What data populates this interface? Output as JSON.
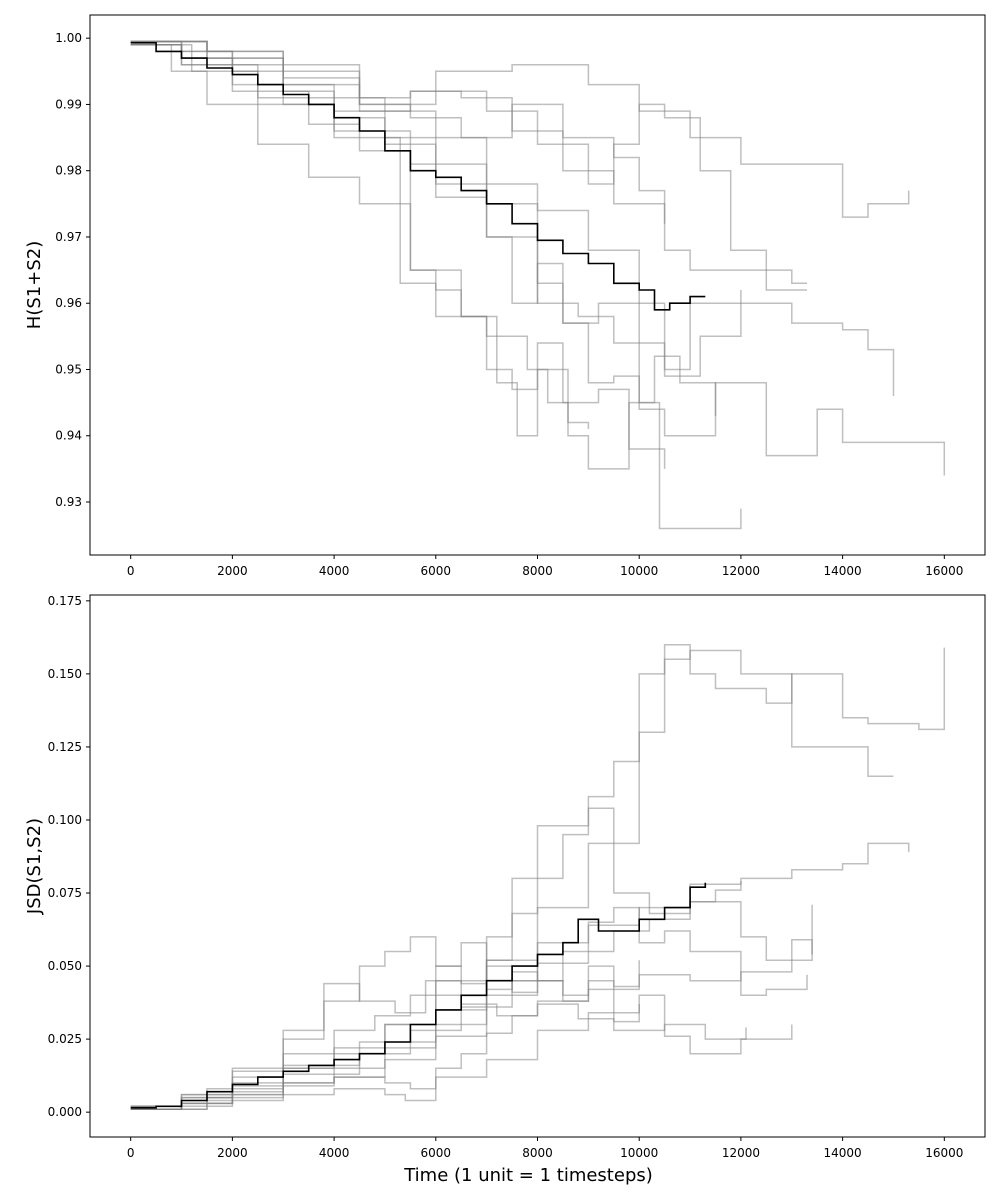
{
  "chart_data": [
    {
      "type": "line",
      "ylabel": "H(S1+S2)",
      "xlabel": "",
      "xlim": [
        -800,
        16800
      ],
      "ylim": [
        0.922,
        1.0035
      ],
      "xticks": [
        0,
        2000,
        4000,
        6000,
        8000,
        10000,
        12000,
        14000,
        16000
      ],
      "xtick_labels": [
        "0",
        "2000",
        "4000",
        "6000",
        "8000",
        "10000",
        "12000",
        "14000",
        "16000"
      ],
      "yticks": [
        0.93,
        0.94,
        0.95,
        0.96,
        0.97,
        0.98,
        0.99,
        1.0
      ],
      "ytick_labels": [
        "0.93",
        "0.94",
        "0.95",
        "0.96",
        "0.97",
        "0.98",
        "0.99",
        "1.00"
      ],
      "mean_color": "#000000",
      "run_color": "#808080",
      "series": [
        {
          "kind": "mean",
          "x": [
            0,
            500,
            1000,
            1500,
            2000,
            2500,
            3000,
            3500,
            4000,
            4500,
            5000,
            5500,
            6000,
            6500,
            7000,
            7500,
            8000,
            8500,
            9000,
            9500,
            10000,
            10300,
            10600,
            11000,
            11300
          ],
          "y": [
            0.9993,
            0.998,
            0.997,
            0.9955,
            0.9945,
            0.993,
            0.9915,
            0.99,
            0.988,
            0.986,
            0.983,
            0.98,
            0.979,
            0.977,
            0.975,
            0.972,
            0.9695,
            0.9675,
            0.966,
            0.963,
            0.962,
            0.959,
            0.96,
            0.961,
            0.961
          ]
        },
        {
          "kind": "run",
          "x": [
            0,
            1500,
            3000,
            4500,
            5500,
            6500,
            7500,
            8500,
            9500,
            10500,
            11000,
            11500,
            12000,
            13000,
            13300
          ],
          "y": [
            0.9995,
            0.997,
            0.993,
            0.989,
            0.992,
            0.991,
            0.986,
            0.98,
            0.975,
            0.968,
            0.965,
            0.965,
            0.965,
            0.963,
            0.963
          ]
        },
        {
          "kind": "run",
          "x": [
            0,
            1000,
            2500,
            4000,
            5500,
            7000,
            8000,
            8800,
            9500,
            10500,
            11000,
            12500,
            13000,
            14000,
            14500,
            15000
          ],
          "y": [
            0.999,
            0.996,
            0.991,
            0.986,
            0.981,
            0.975,
            0.96,
            0.958,
            0.954,
            0.95,
            0.96,
            0.96,
            0.957,
            0.956,
            0.953,
            0.946
          ]
        },
        {
          "kind": "run",
          "x": [
            0,
            1500,
            3000,
            4500,
            6000,
            7500,
            9000,
            10000,
            11000,
            12000,
            14000,
            14500,
            15300
          ],
          "y": [
            0.9995,
            0.998,
            0.995,
            0.99,
            0.995,
            0.996,
            0.993,
            0.989,
            0.985,
            0.981,
            0.973,
            0.975,
            0.977
          ]
        },
        {
          "kind": "run",
          "x": [
            0,
            1200,
            2500,
            4000,
            5300,
            6000,
            7000,
            7800,
            8200,
            8600,
            9000,
            9800,
            10400,
            12000
          ],
          "y": [
            0.999,
            0.995,
            0.99,
            0.985,
            0.963,
            0.958,
            0.955,
            0.95,
            0.945,
            0.94,
            0.935,
            0.945,
            0.926,
            0.929
          ]
        },
        {
          "kind": "run",
          "x": [
            0,
            1000,
            2000,
            3500,
            4500,
            5500,
            6500,
            7200,
            7600,
            8000,
            8600,
            9000
          ],
          "y": [
            0.999,
            0.996,
            0.992,
            0.987,
            0.983,
            0.965,
            0.958,
            0.948,
            0.94,
            0.95,
            0.942,
            0.941
          ]
        },
        {
          "kind": "run",
          "x": [
            0,
            1000,
            2000,
            3000,
            4000,
            5000,
            6000,
            7000,
            8000,
            9000,
            10000,
            10500,
            11200,
            12000
          ],
          "y": [
            0.9995,
            0.998,
            0.996,
            0.993,
            0.991,
            0.989,
            0.985,
            0.978,
            0.974,
            0.968,
            0.96,
            0.949,
            0.955,
            0.962
          ]
        },
        {
          "kind": "run",
          "x": [
            0,
            1000,
            2000,
            3000,
            4000,
            5000,
            6000,
            7000,
            8000,
            8500,
            9200,
            10000,
            10500,
            11500,
            12500,
            13500,
            14000,
            15000,
            16000
          ],
          "y": [
            0.9995,
            0.998,
            0.995,
            0.992,
            0.989,
            0.984,
            0.976,
            0.97,
            0.963,
            0.957,
            0.96,
            0.944,
            0.94,
            0.948,
            0.937,
            0.944,
            0.939,
            0.939,
            0.934
          ]
        },
        {
          "kind": "run",
          "x": [
            0,
            1500,
            3000,
            4500,
            5500,
            7000,
            8000,
            9000,
            9500,
            10000,
            10500,
            11200,
            11800,
            12500,
            13300
          ],
          "y": [
            0.9995,
            0.997,
            0.994,
            0.991,
            0.992,
            0.989,
            0.984,
            0.978,
            0.984,
            0.99,
            0.988,
            0.98,
            0.968,
            0.962,
            0.962
          ]
        },
        {
          "kind": "run",
          "x": [
            0,
            800,
            1500,
            2500,
            3500,
            4500,
            5500,
            6000,
            6500,
            7000,
            7500,
            8000,
            8500,
            9200,
            9800,
            10500
          ],
          "y": [
            0.999,
            0.995,
            0.99,
            0.984,
            0.979,
            0.975,
            0.965,
            0.962,
            0.958,
            0.95,
            0.947,
            0.954,
            0.945,
            0.947,
            0.938,
            0.935
          ]
        },
        {
          "kind": "run",
          "x": [
            0,
            1000,
            2000,
            3000,
            4000,
            5000,
            6000,
            7000,
            7500,
            8000,
            8500,
            9000,
            9500,
            10000,
            10300,
            10800,
            11500
          ],
          "y": [
            0.999,
            0.997,
            0.993,
            0.99,
            0.988,
            0.985,
            0.978,
            0.97,
            0.96,
            0.966,
            0.957,
            0.948,
            0.949,
            0.945,
            0.952,
            0.948,
            0.943
          ]
        },
        {
          "kind": "run",
          "x": [
            0,
            1500,
            3000,
            4500,
            5500,
            6500,
            7500,
            8500,
            9500,
            10000,
            10500
          ],
          "y": [
            0.9995,
            0.998,
            0.996,
            0.99,
            0.988,
            0.985,
            0.99,
            0.985,
            0.982,
            0.977,
            0.972
          ]
        }
      ]
    },
    {
      "type": "line",
      "ylabel": "JSD(S1,S2)",
      "xlabel": "Time (1 unit = 1 timesteps)",
      "xlim": [
        -800,
        16800
      ],
      "ylim": [
        -0.0085,
        0.177
      ],
      "xticks": [
        0,
        2000,
        4000,
        6000,
        8000,
        10000,
        12000,
        14000,
        16000
      ],
      "xtick_labels": [
        "0",
        "2000",
        "4000",
        "6000",
        "8000",
        "10000",
        "12000",
        "14000",
        "16000"
      ],
      "yticks": [
        0.0,
        0.025,
        0.05,
        0.075,
        0.1,
        0.125,
        0.15,
        0.175
      ],
      "ytick_labels": [
        "0.000",
        "0.025",
        "0.050",
        "0.075",
        "0.100",
        "0.125",
        "0.150",
        "0.175"
      ],
      "mean_color": "#000000",
      "run_color": "#808080",
      "series": [
        {
          "kind": "mean",
          "x": [
            0,
            500,
            1000,
            1500,
            2000,
            2500,
            3000,
            3500,
            4000,
            4500,
            5000,
            5500,
            6000,
            6500,
            7000,
            7500,
            8000,
            8500,
            8800,
            9200,
            9600,
            10000,
            10500,
            11000,
            11300
          ],
          "y": [
            0.0015,
            0.002,
            0.004,
            0.007,
            0.0095,
            0.012,
            0.014,
            0.016,
            0.018,
            0.02,
            0.024,
            0.03,
            0.035,
            0.04,
            0.045,
            0.05,
            0.054,
            0.058,
            0.066,
            0.062,
            0.062,
            0.066,
            0.07,
            0.077,
            0.0785
          ]
        },
        {
          "kind": "run",
          "x": [
            0,
            1000,
            2000,
            3000,
            4000,
            5000,
            6000,
            7000,
            8000,
            9000,
            10000,
            10500,
            11000,
            12000,
            13000,
            14000,
            14500,
            15000
          ],
          "y": [
            0.001,
            0.004,
            0.009,
            0.015,
            0.022,
            0.03,
            0.04,
            0.052,
            0.07,
            0.092,
            0.13,
            0.155,
            0.158,
            0.15,
            0.125,
            0.125,
            0.115,
            0.115
          ]
        },
        {
          "kind": "run",
          "x": [
            0,
            1000,
            2000,
            3000,
            4000,
            5000,
            6000,
            7000,
            7500,
            8000,
            8500,
            9000,
            9500,
            10000,
            10500,
            11000,
            11500,
            12500,
            13000,
            14000,
            14500,
            15500,
            16000
          ],
          "y": [
            0.001,
            0.003,
            0.006,
            0.01,
            0.015,
            0.022,
            0.035,
            0.052,
            0.068,
            0.08,
            0.095,
            0.108,
            0.12,
            0.15,
            0.16,
            0.15,
            0.145,
            0.14,
            0.15,
            0.135,
            0.133,
            0.131,
            0.159
          ]
        },
        {
          "kind": "run",
          "x": [
            0,
            1000,
            2000,
            3000,
            4000,
            5000,
            6000,
            7000,
            7500,
            8000,
            9000,
            9500,
            10200,
            11000,
            12000,
            12500,
            13400
          ],
          "y": [
            0.002,
            0.005,
            0.01,
            0.015,
            0.02,
            0.03,
            0.045,
            0.06,
            0.08,
            0.098,
            0.104,
            0.075,
            0.068,
            0.072,
            0.06,
            0.052,
            0.071
          ]
        },
        {
          "kind": "run",
          "x": [
            0,
            1000,
            2000,
            3000,
            4000,
            5000,
            6000,
            7000,
            8000,
            9000,
            10000,
            11000,
            12000,
            13000,
            14000,
            14500,
            15300
          ],
          "y": [
            0.001,
            0.003,
            0.006,
            0.009,
            0.012,
            0.018,
            0.026,
            0.04,
            0.051,
            0.064,
            0.07,
            0.078,
            0.08,
            0.083,
            0.085,
            0.092,
            0.089
          ]
        },
        {
          "kind": "run",
          "x": [
            0,
            1000,
            2000,
            3000,
            3800,
            4500,
            5200,
            5800,
            6500,
            7200,
            8000,
            8800,
            9500,
            10500,
            11300,
            12100
          ],
          "y": [
            0.002,
            0.006,
            0.015,
            0.028,
            0.044,
            0.038,
            0.034,
            0.045,
            0.037,
            0.033,
            0.037,
            0.032,
            0.028,
            0.03,
            0.025,
            0.029
          ]
        },
        {
          "kind": "run",
          "x": [
            0,
            1000,
            2000,
            3000,
            3800,
            4500,
            5000,
            5500,
            6000,
            6500,
            7000,
            7500,
            8000,
            8500,
            9000,
            9500,
            10000
          ],
          "y": [
            0.002,
            0.006,
            0.014,
            0.025,
            0.038,
            0.05,
            0.055,
            0.06,
            0.05,
            0.058,
            0.042,
            0.048,
            0.045,
            0.04,
            0.05,
            0.043,
            0.052
          ]
        },
        {
          "kind": "run",
          "x": [
            0,
            1000,
            2000,
            3000,
            4000,
            4800,
            5500,
            6000,
            6500,
            7000,
            7500,
            8000,
            8500,
            9000,
            9500,
            10000
          ],
          "y": [
            0.002,
            0.005,
            0.012,
            0.02,
            0.028,
            0.033,
            0.04,
            0.05,
            0.044,
            0.05,
            0.041,
            0.045,
            0.038,
            0.045,
            0.031,
            0.037
          ]
        },
        {
          "kind": "run",
          "x": [
            0,
            1000,
            2000,
            3000,
            4000,
            5000,
            5500,
            6000,
            6500,
            7000,
            7500,
            8000,
            9000,
            10000,
            11000,
            12000,
            13000,
            13400
          ],
          "y": [
            0.001,
            0.003,
            0.007,
            0.01,
            0.012,
            0.01,
            0.008,
            0.015,
            0.02,
            0.027,
            0.033,
            0.038,
            0.042,
            0.047,
            0.045,
            0.048,
            0.059,
            0.054
          ]
        },
        {
          "kind": "run",
          "x": [
            0,
            1000,
            2000,
            3000,
            4000,
            5000,
            5400,
            6000,
            7000,
            8000,
            9000,
            10000,
            10500,
            11000,
            12000,
            13000
          ],
          "y": [
            0.001,
            0.002,
            0.004,
            0.006,
            0.008,
            0.006,
            0.004,
            0.012,
            0.018,
            0.028,
            0.034,
            0.04,
            0.026,
            0.02,
            0.025,
            0.03
          ]
        },
        {
          "kind": "run",
          "x": [
            0,
            1500,
            3000,
            4500,
            6000,
            7000,
            8000,
            9000,
            9500,
            10000,
            10500,
            11000,
            12000,
            12500,
            13300
          ],
          "y": [
            0.001,
            0.008,
            0.016,
            0.024,
            0.03,
            0.045,
            0.058,
            0.065,
            0.07,
            0.058,
            0.062,
            0.055,
            0.04,
            0.042,
            0.047
          ]
        },
        {
          "kind": "run",
          "x": [
            0,
            1500,
            3000,
            4500,
            5500,
            6500,
            7500,
            8500,
            9500,
            10200,
            11000,
            11500,
            12000
          ],
          "y": [
            0.001,
            0.005,
            0.013,
            0.02,
            0.028,
            0.036,
            0.045,
            0.055,
            0.062,
            0.066,
            0.072,
            0.076,
            0.079
          ]
        }
      ]
    }
  ]
}
